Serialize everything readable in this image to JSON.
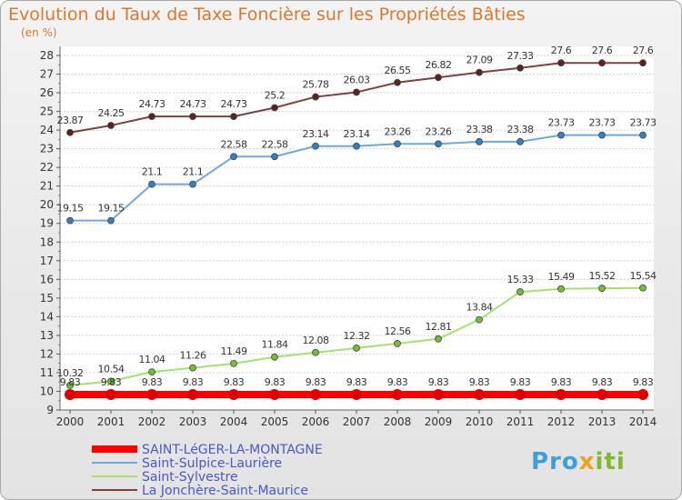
{
  "title": "Evolution du Taux de Taxe Foncière sur les Propriétés Bâties",
  "unit_label": "(en %)",
  "logo": {
    "part1": "Pro",
    "part2": "x",
    "part3": "iti"
  },
  "chart_data": {
    "type": "line",
    "title": "Evolution du Taux de Taxe Foncière sur les Propriétés Bâties",
    "ylabel": "(en %)",
    "xlabel": "",
    "ylim": [
      9,
      28
    ],
    "y_ticks": [
      9,
      10,
      11,
      12,
      13,
      14,
      15,
      16,
      17,
      18,
      19,
      20,
      21,
      22,
      23,
      24,
      25,
      26,
      27,
      28
    ],
    "grid": "horizontal",
    "legend_position": "bottom-left",
    "x": [
      "2000",
      "2001",
      "2002",
      "2003",
      "2004",
      "2005",
      "2006",
      "2007",
      "2008",
      "2009",
      "2010",
      "2011",
      "2012",
      "2013",
      "2014"
    ],
    "series": [
      {
        "name": "SAINT-LéGER-LA-MONTAGNE",
        "color": "#ff0000",
        "marker": "#e00000",
        "values": [
          9.83,
          9.83,
          9.83,
          9.83,
          9.83,
          9.83,
          9.83,
          9.83,
          9.83,
          9.83,
          9.83,
          9.83,
          9.83,
          9.83,
          9.83
        ],
        "labels": [
          "9.83",
          "9.83",
          "9.83",
          "9.83",
          "9.83",
          "9.83",
          "9.83",
          "9.83",
          "9.83",
          "9.83",
          "9.83",
          "9.83",
          "9.83",
          "9.83",
          "9.83"
        ]
      },
      {
        "name": "Saint-Sulpice-Laurière",
        "color": "#70a8d8",
        "marker": "#3080c8",
        "values": [
          19.15,
          19.15,
          21.1,
          21.1,
          22.58,
          22.58,
          23.14,
          23.14,
          23.26,
          23.26,
          23.38,
          23.38,
          23.73,
          23.73,
          23.73
        ],
        "labels": [
          "19.15",
          "19.15",
          "21.1",
          "21.1",
          "22.58",
          "22.58",
          "23.14",
          "23.14",
          "23.26",
          "23.26",
          "23.38",
          "23.38",
          "23.73",
          "23.73",
          "23.73"
        ]
      },
      {
        "name": "Saint-Sylvestre",
        "color": "#a8e070",
        "marker": "#70c030",
        "values": [
          10.32,
          10.54,
          11.04,
          11.26,
          11.49,
          11.84,
          12.08,
          12.32,
          12.56,
          12.81,
          13.84,
          15.33,
          15.49,
          15.52,
          15.54
        ],
        "labels": [
          "10.32",
          "10.54",
          "11.04",
          "11.26",
          "11.49",
          "11.84",
          "12.08",
          "12.32",
          "12.56",
          "12.81",
          "13.84",
          "15.33",
          "15.49",
          "15.52",
          "15.54"
        ]
      },
      {
        "name": "La Jonchère-Saint-Maurice",
        "color": "#804040",
        "marker": "#602020",
        "values": [
          23.87,
          24.25,
          24.73,
          24.73,
          24.73,
          25.2,
          25.78,
          26.03,
          26.55,
          26.82,
          27.09,
          27.33,
          27.6,
          27.6,
          27.6
        ],
        "labels": [
          "23.87",
          "24.25",
          "24.73",
          "24.73",
          "24.73",
          "25.2",
          "25.78",
          "26.03",
          "26.55",
          "26.82",
          "27.09",
          "27.33",
          "27.6",
          "27.6",
          "27.6"
        ]
      }
    ]
  }
}
